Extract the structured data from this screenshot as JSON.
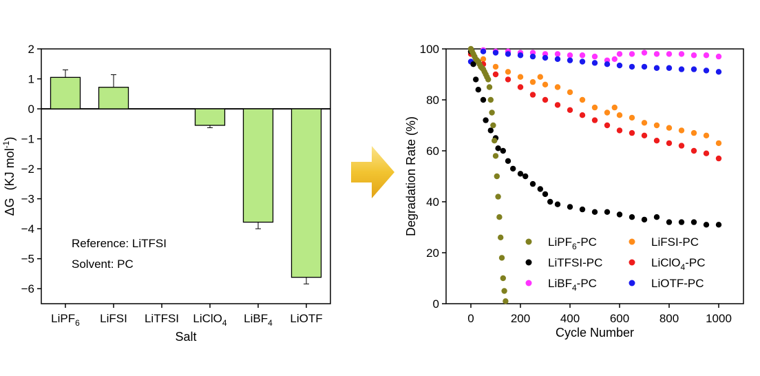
{
  "chart_data": [
    {
      "type": "bar",
      "title": "",
      "xlabel": "Salt",
      "ylabel": "ΔG",
      "ylabel_unit_main": "(KJ mol",
      "ylabel_unit_sup": "-1",
      "ylabel_unit_close": ")",
      "ylim": [
        -6.5,
        2
      ],
      "yticks": [
        2,
        1,
        0,
        -1,
        -2,
        -3,
        -4,
        -5,
        -6
      ],
      "ytick_labels": [
        "2",
        "1",
        "0",
        "−1",
        "−2",
        "−3",
        "−4",
        "−5",
        "−6"
      ],
      "categories": [
        {
          "base": "LiPF",
          "sub": "6"
        },
        {
          "base": "LiFSI",
          "sub": ""
        },
        {
          "base": "LiTFSI",
          "sub": ""
        },
        {
          "base": "LiClO",
          "sub": "4"
        },
        {
          "base": "LiBF",
          "sub": "4"
        },
        {
          "base": "LiOTF",
          "sub": ""
        }
      ],
      "values": [
        1.05,
        0.72,
        0,
        -0.55,
        -3.78,
        -5.62
      ],
      "errors": [
        0.25,
        0.42,
        0,
        0.08,
        0.22,
        0.22
      ],
      "bar_color": "#b8e986",
      "annotations": [
        "Reference: LiTFSI",
        "Solvent: PC"
      ]
    },
    {
      "type": "scatter",
      "title": "",
      "xlabel": "Cycle Number",
      "ylabel": "Degradation Rate (%)",
      "xlim": [
        -100,
        1100
      ],
      "ylim": [
        0,
        100
      ],
      "xticks": [
        0,
        200,
        400,
        600,
        800,
        1000
      ],
      "yticks": [
        0,
        20,
        40,
        60,
        80,
        100
      ],
      "legend_position": "bottom-right",
      "series": [
        {
          "base": "LiPF",
          "sub": "6",
          "suffix": "-PC",
          "color": "#808020",
          "points": [
            [
              0,
              100
            ],
            [
              5,
              99
            ],
            [
              10,
              98
            ],
            [
              15,
              97
            ],
            [
              20,
              96
            ],
            [
              25,
              95.5
            ],
            [
              30,
              95
            ],
            [
              35,
              94
            ],
            [
              40,
              93
            ],
            [
              45,
              92.5
            ],
            [
              50,
              92
            ],
            [
              55,
              91
            ],
            [
              60,
              90
            ],
            [
              65,
              89
            ],
            [
              70,
              88
            ],
            [
              75,
              85
            ],
            [
              80,
              80
            ],
            [
              85,
              75
            ],
            [
              90,
              70
            ],
            [
              95,
              64
            ],
            [
              100,
              58
            ],
            [
              105,
              50
            ],
            [
              110,
              42
            ],
            [
              115,
              34
            ],
            [
              120,
              26
            ],
            [
              125,
              18
            ],
            [
              130,
              10
            ],
            [
              135,
              5
            ],
            [
              140,
              1
            ]
          ]
        },
        {
          "base": "LiFSI",
          "sub": "",
          "suffix": "-PC",
          "color": "#ff8c1a",
          "points": [
            [
              0,
              99
            ],
            [
              50,
              96
            ],
            [
              100,
              93
            ],
            [
              150,
              91
            ],
            [
              200,
              89
            ],
            [
              250,
              87
            ],
            [
              280,
              89
            ],
            [
              300,
              86
            ],
            [
              350,
              85
            ],
            [
              400,
              83
            ],
            [
              450,
              80
            ],
            [
              500,
              77
            ],
            [
              550,
              75
            ],
            [
              580,
              77
            ],
            [
              600,
              74
            ],
            [
              650,
              73
            ],
            [
              700,
              71
            ],
            [
              750,
              70
            ],
            [
              800,
              69
            ],
            [
              850,
              68
            ],
            [
              900,
              67
            ],
            [
              950,
              66
            ],
            [
              1000,
              63
            ]
          ]
        },
        {
          "base": "LiTFSI",
          "sub": "",
          "suffix": "-PC",
          "color": "#000000",
          "points": [
            [
              0,
              99
            ],
            [
              10,
              94
            ],
            [
              20,
              88
            ],
            [
              30,
              84
            ],
            [
              50,
              80
            ],
            [
              60,
              72
            ],
            [
              80,
              68
            ],
            [
              100,
              65
            ],
            [
              110,
              61
            ],
            [
              130,
              60
            ],
            [
              150,
              56
            ],
            [
              170,
              53
            ],
            [
              200,
              51
            ],
            [
              220,
              50
            ],
            [
              250,
              47
            ],
            [
              280,
              45
            ],
            [
              300,
              43
            ],
            [
              320,
              40
            ],
            [
              350,
              39
            ],
            [
              400,
              38
            ],
            [
              450,
              37
            ],
            [
              500,
              36
            ],
            [
              550,
              36
            ],
            [
              600,
              35
            ],
            [
              650,
              34
            ],
            [
              700,
              33
            ],
            [
              750,
              34
            ],
            [
              800,
              32
            ],
            [
              850,
              32
            ],
            [
              900,
              32
            ],
            [
              950,
              31
            ],
            [
              1000,
              31
            ]
          ]
        },
        {
          "base": "LiClO",
          "sub": "4",
          "suffix": "-PC",
          "color": "#ee1c1c",
          "points": [
            [
              0,
              98
            ],
            [
              50,
              94
            ],
            [
              100,
              90
            ],
            [
              150,
              88
            ],
            [
              200,
              85
            ],
            [
              250,
              82
            ],
            [
              300,
              80
            ],
            [
              350,
              78
            ],
            [
              400,
              76
            ],
            [
              450,
              74
            ],
            [
              500,
              72
            ],
            [
              550,
              70
            ],
            [
              600,
              68
            ],
            [
              650,
              67
            ],
            [
              700,
              66
            ],
            [
              750,
              64
            ],
            [
              800,
              63
            ],
            [
              850,
              62
            ],
            [
              900,
              60
            ],
            [
              950,
              59
            ],
            [
              1000,
              57
            ]
          ]
        },
        {
          "base": "LiBF",
          "sub": "4",
          "suffix": "-PC",
          "color": "#ff33ff",
          "points": [
            [
              0,
              99
            ],
            [
              50,
              99.5
            ],
            [
              100,
              99
            ],
            [
              150,
              99
            ],
            [
              200,
              98.5
            ],
            [
              250,
              98.5
            ],
            [
              300,
              98
            ],
            [
              350,
              98
            ],
            [
              400,
              97.5
            ],
            [
              450,
              97.5
            ],
            [
              500,
              97
            ],
            [
              550,
              95.5
            ],
            [
              580,
              96
            ],
            [
              600,
              98
            ],
            [
              650,
              98
            ],
            [
              700,
              98.5
            ],
            [
              750,
              98
            ],
            [
              800,
              98
            ],
            [
              850,
              98
            ],
            [
              900,
              97.5
            ],
            [
              950,
              97.5
            ],
            [
              1000,
              97
            ]
          ]
        },
        {
          "base": "LiOTF",
          "sub": "",
          "suffix": "-PC",
          "color": "#1a1aee",
          "points": [
            [
              0,
              95
            ],
            [
              50,
              99
            ],
            [
              100,
              98.5
            ],
            [
              150,
              98
            ],
            [
              200,
              97.5
            ],
            [
              250,
              97
            ],
            [
              300,
              96.5
            ],
            [
              350,
              96
            ],
            [
              400,
              95.5
            ],
            [
              450,
              95
            ],
            [
              500,
              94.5
            ],
            [
              550,
              94
            ],
            [
              600,
              93.5
            ],
            [
              650,
              93
            ],
            [
              700,
              93
            ],
            [
              750,
              92.5
            ],
            [
              800,
              92.5
            ],
            [
              850,
              92
            ],
            [
              900,
              92
            ],
            [
              950,
              91.5
            ],
            [
              1000,
              91
            ]
          ]
        }
      ]
    }
  ]
}
